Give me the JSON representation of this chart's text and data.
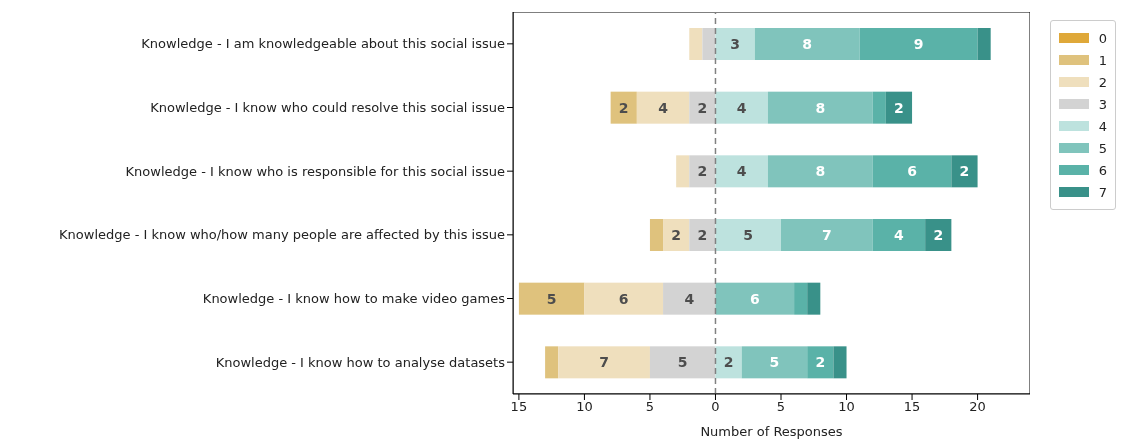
{
  "chart_data": {
    "type": "bar",
    "orientation": "horizontal",
    "xlabel": "Number of Responses",
    "categories": [
      "Knowledge - I am knowledgeable about this social issue",
      "Knowledge - I know who could resolve this social issue",
      "Knowledge - I know who is responsible for this social issue",
      "Knowledge - I know who/how many people are affected by this issue",
      "Knowledge - I know how to make video games",
      "Knowledge - I know how to analyse datasets"
    ],
    "series": [
      {
        "name": "0",
        "color": "#dfa839",
        "values": [
          0,
          0,
          0,
          0,
          0,
          0
        ],
        "base": [
          null,
          null,
          null,
          null,
          null,
          null
        ],
        "value_labels": [
          null,
          null,
          null,
          null,
          null,
          null
        ]
      },
      {
        "name": "1",
        "color": "#dfc27d",
        "values": [
          0,
          2,
          0,
          1,
          5,
          1
        ],
        "base": [
          null,
          -8,
          null,
          -5,
          -15,
          -13
        ],
        "value_labels": [
          null,
          "2",
          null,
          null,
          "5",
          null
        ]
      },
      {
        "name": "2",
        "color": "#efdfbd",
        "values": [
          1,
          4,
          1,
          2,
          6,
          7
        ],
        "base": [
          -2,
          -6,
          -3,
          -4,
          -10,
          -12
        ],
        "value_labels": [
          null,
          "4",
          null,
          "2",
          "6",
          "7"
        ]
      },
      {
        "name": "3",
        "color": "#d3d3d3",
        "values": [
          1,
          2,
          2,
          2,
          4,
          5
        ],
        "base": [
          -1,
          -2,
          -2,
          -2,
          -4,
          -5
        ],
        "value_labels": [
          null,
          "2",
          "2",
          "2",
          "4",
          "5"
        ]
      },
      {
        "name": "4",
        "color": "#bde2de",
        "values": [
          3,
          4,
          4,
          5,
          0,
          2
        ],
        "base": [
          0,
          0,
          0,
          0,
          null,
          0
        ],
        "value_labels": [
          "3",
          "4",
          "4",
          "5",
          null,
          "2"
        ]
      },
      {
        "name": "5",
        "color": "#80c4bc",
        "values": [
          8,
          8,
          8,
          7,
          6,
          5
        ],
        "base": [
          3,
          4,
          4,
          5,
          0,
          2
        ],
        "value_labels": [
          "8",
          "8",
          "8",
          "7",
          "6",
          "5"
        ]
      },
      {
        "name": "6",
        "color": "#5ab2a8",
        "values": [
          9,
          1,
          6,
          4,
          1,
          2
        ],
        "base": [
          11,
          12,
          12,
          12,
          6,
          7
        ],
        "value_labels": [
          "9",
          null,
          "6",
          "4",
          null,
          "2"
        ]
      },
      {
        "name": "7",
        "color": "#399189",
        "values": [
          1,
          2,
          2,
          2,
          1,
          1
        ],
        "base": [
          20,
          13,
          18,
          16,
          7,
          9
        ],
        "value_labels": [
          null,
          "2",
          "2",
          "2",
          null,
          null
        ]
      }
    ],
    "xlim": [
      -15.45,
      24
    ],
    "xticks": [
      {
        "value": -15,
        "label": "15"
      },
      {
        "value": -10,
        "label": "10"
      },
      {
        "value": -5,
        "label": "5"
      },
      0,
      5,
      10,
      15,
      20
    ],
    "ref_lines": [
      {
        "axis": "x",
        "value": 0,
        "color": "#808080",
        "line_style": "dashed"
      }
    ],
    "legend": "top right"
  }
}
